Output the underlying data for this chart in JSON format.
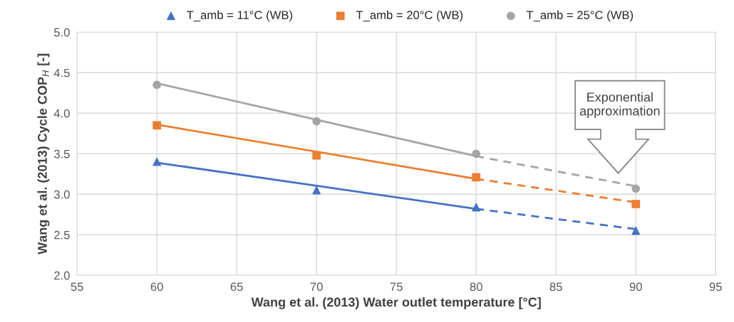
{
  "chart_data": {
    "type": "scatter",
    "xlabel": "Wang et al. (2013) Water outlet temperature [°C]",
    "ylabel": "Wang et al. (2013) Cycle COP$_{H}$ [-]",
    "xlim": [
      55,
      95
    ],
    "xticks": [
      55,
      60,
      65,
      70,
      75,
      80,
      85,
      90,
      95
    ],
    "ylim": [
      2.0,
      5.0
    ],
    "yticks": [
      {
        "value": 2.0,
        "label": "2.0"
      },
      {
        "value": 2.5,
        "label": "2.5"
      },
      {
        "value": 3.0,
        "label": "3.0"
      },
      {
        "value": 3.5,
        "label": "3.5"
      },
      {
        "value": 4.0,
        "label": "4.0"
      },
      {
        "value": 4.5,
        "label": "4.5"
      },
      {
        "value": 5.0,
        "label": "5.0"
      }
    ],
    "grid": true,
    "legend": "top",
    "series": [
      {
        "type": "line",
        "color": "#4472c4",
        "x": [
          60,
          80
        ],
        "values": [
          3.39,
          2.82
        ],
        "line_style": "solid",
        "marker": "none"
      },
      {
        "type": "line",
        "color": "#4472c4",
        "x": [
          80,
          90
        ],
        "values": [
          2.82,
          2.57
        ],
        "line_style": "dashed",
        "marker": "none"
      },
      {
        "type": "line",
        "color": "#ed7d31",
        "x": [
          60,
          80
        ],
        "values": [
          3.86,
          3.19
        ],
        "line_style": "solid",
        "marker": "none"
      },
      {
        "type": "line",
        "color": "#ed7d31",
        "x": [
          80,
          90
        ],
        "values": [
          3.19,
          2.9
        ],
        "line_style": "dashed",
        "marker": "none"
      },
      {
        "type": "line",
        "color": "#a5a5a5",
        "x": [
          60,
          80
        ],
        "values": [
          4.37,
          3.47
        ],
        "line_style": "solid",
        "marker": "none"
      },
      {
        "type": "line",
        "color": "#a5a5a5",
        "x": [
          80,
          90
        ],
        "values": [
          3.47,
          3.1
        ],
        "line_style": "dashed",
        "marker": "none"
      },
      {
        "name": "T_amb = 11°C (WB)",
        "color": "#4472c4",
        "x": [
          60,
          70,
          80,
          90
        ],
        "values": [
          3.4,
          3.05,
          2.84,
          2.55
        ],
        "marker": "triangle"
      },
      {
        "name": "T_amb = 20°C (WB)",
        "color": "#ed7d31",
        "x": [
          60,
          70,
          80,
          90
        ],
        "values": [
          3.85,
          3.48,
          3.21,
          2.88
        ],
        "marker": "square"
      },
      {
        "name": "T_amb = 25°C (WB)",
        "color": "#a5a5a5",
        "x": [
          60,
          70,
          80,
          90
        ],
        "values": [
          4.35,
          3.9,
          3.5,
          3.07
        ],
        "marker": "circle"
      }
    ],
    "annotations": [
      "Exponential\napproximation"
    ]
  }
}
